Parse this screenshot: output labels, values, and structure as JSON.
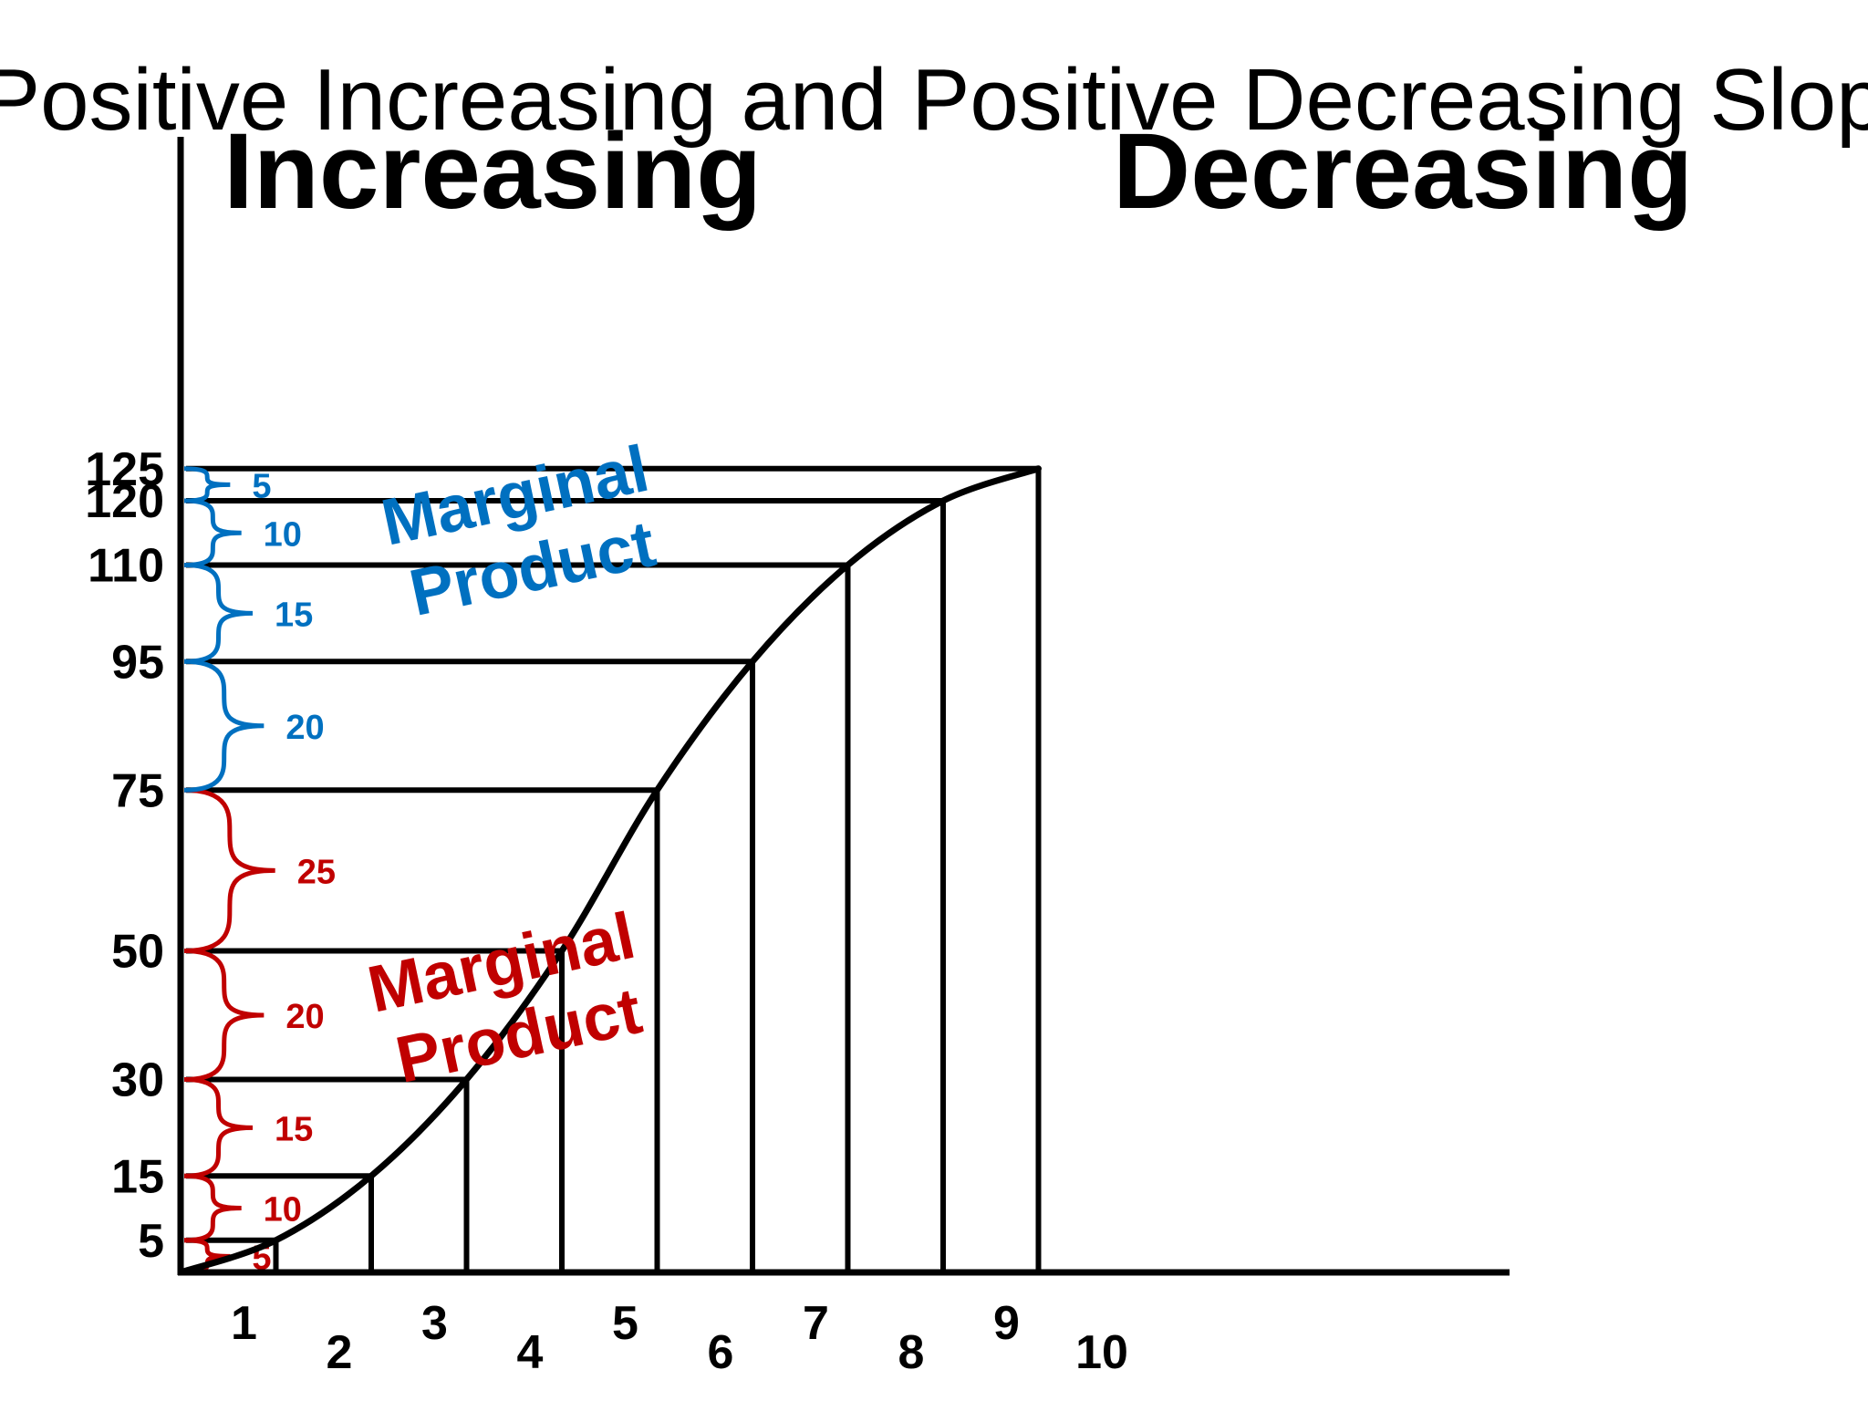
{
  "chart_data": {
    "type": "line",
    "title": "Positive Increasing and Positive Decreasing Slope",
    "section_labels": {
      "increasing": "Increasing",
      "decreasing": "Decreasing"
    },
    "annotation_labels": {
      "increasing_marginal_product": [
        "Marginal",
        "Product"
      ],
      "decreasing_marginal_product": [
        "Marginal",
        "Product"
      ]
    },
    "x_tick_labels": [
      "1",
      "2",
      "3",
      "4",
      "5",
      "6",
      "7",
      "8",
      "9",
      "10"
    ],
    "y_tick_labels": [
      "5",
      "15",
      "30",
      "50",
      "75",
      "95",
      "110",
      "120",
      "125"
    ],
    "x": [
      0,
      1,
      2,
      3,
      4,
      5,
      6,
      7,
      8,
      9
    ],
    "total_product": [
      0,
      5,
      15,
      30,
      50,
      75,
      95,
      110,
      120,
      125
    ],
    "marginal_product": {
      "increasing": [
        5,
        10,
        15,
        20,
        25
      ],
      "decreasing": [
        20,
        15,
        10,
        5
      ]
    },
    "xlim": [
      0,
      14
    ],
    "ylim": [
      0,
      125
    ],
    "grid": false,
    "colors": {
      "increasing": "#c00000",
      "decreasing": "#0070c0",
      "axis": "#000000"
    }
  }
}
